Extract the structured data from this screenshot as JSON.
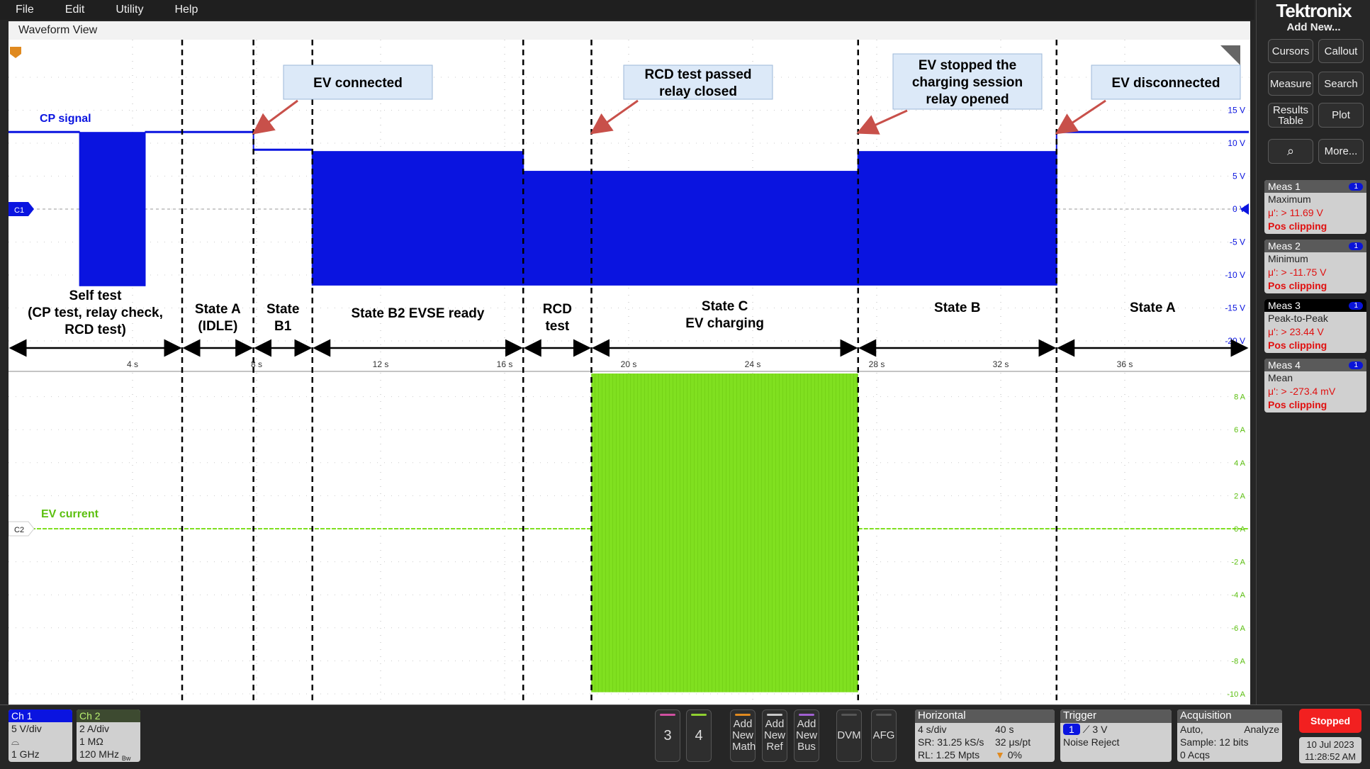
{
  "menu": [
    "File",
    "Edit",
    "Utility",
    "Help"
  ],
  "waveform_view": {
    "title": "Waveform View"
  },
  "brand": {
    "logo": "Tektronix"
  },
  "right_panel": {
    "add_new": "Add New...",
    "buttons": [
      "Cursors",
      "Callout",
      "Measure",
      "Search",
      "Results Table",
      "Plot",
      "zoom-search",
      "More..."
    ],
    "measurements": [
      {
        "title": "Meas 1",
        "badge": "1",
        "type": "Maximum",
        "value": "μ': > 11.69 V",
        "status": "Pos clipping"
      },
      {
        "title": "Meas 2",
        "badge": "1",
        "type": "Minimum",
        "value": "μ': > -11.75 V",
        "status": "Pos clipping"
      },
      {
        "title": "Meas 3",
        "badge": "1",
        "type": "Peak-to-Peak",
        "value": "μ': > 23.44 V",
        "status": "Pos clipping"
      },
      {
        "title": "Meas 4",
        "badge": "1",
        "type": "Mean",
        "value": "μ': > -273.4 mV",
        "status": "Pos clipping"
      }
    ]
  },
  "bottom": {
    "ch1": {
      "title": "Ch 1",
      "scale": "5 V/div",
      "probe_icon": "probe-icon",
      "bw": "1 GHz",
      "bw_mark": "Bw"
    },
    "ch2": {
      "title": "Ch 2",
      "scale": "2 A/div",
      "impedance": "1 MΩ",
      "bw": "120 MHz",
      "bw_mark": "Bw"
    },
    "ch3": "3",
    "ch4": "4",
    "add_math": "Add New Math",
    "add_ref": "Add New Ref",
    "add_bus": "Add New Bus",
    "dvm": "DVM",
    "afg": "AFG",
    "horizontal": {
      "title": "Horizontal",
      "scale": "4 s/div",
      "duration": "40 s",
      "sr": "SR: 31.25 kS/s",
      "pt": "32 μs/pt",
      "rl": "RL: 1.25 Mpts",
      "pos": "0%"
    },
    "trigger": {
      "title": "Trigger",
      "source": "1",
      "level": "3 V",
      "mode": "Noise Reject"
    },
    "acquisition": {
      "title": "Acquisition",
      "mode": "Auto,",
      "analyze": "Analyze",
      "sample": "Sample: 12 bits",
      "acqs": "0 Acqs"
    },
    "status": "Stopped",
    "date": "10 Jul 2023",
    "time": "11:28:52 AM"
  },
  "colors": {
    "ch1": "#0a14e0",
    "ch2": "#80e020",
    "annotation_box": "#dce9f8",
    "arrow": "#c8504a"
  },
  "chart_data": {
    "type": "line",
    "x_unit": "s",
    "xlim": [
      0,
      40
    ],
    "x_ticks": [
      "4 s",
      "8 s",
      "12 s",
      "16 s",
      "20 s",
      "24 s",
      "28 s",
      "32 s",
      "36 s"
    ],
    "grid": true,
    "panes": [
      {
        "channel": "C1",
        "series_name": "CP signal",
        "ylim": [
          -20,
          20
        ],
        "y_ticks": [
          "15 V",
          "10 V",
          "5 V",
          "0 V",
          "-5 V",
          "-10 V",
          "-15 V",
          "-20 V"
        ],
        "segments": [
          {
            "t0": 0,
            "t1": 2.3,
            "max": 11.7,
            "min": 11.7
          },
          {
            "t0": 2.3,
            "t1": 4.4,
            "max": 11.7,
            "min": -11.7
          },
          {
            "t0": 4.4,
            "t1": 7.9,
            "max": 11.7,
            "min": 11.7
          },
          {
            "t0": 7.9,
            "t1": 9.8,
            "max": 9.0,
            "min": 9.0
          },
          {
            "t0": 9.8,
            "t1": 16.6,
            "max": 8.8,
            "min": -11.6
          },
          {
            "t0": 16.6,
            "t1": 18.8,
            "max": 5.8,
            "min": -11.6
          },
          {
            "t0": 18.8,
            "t1": 27.4,
            "max": 5.8,
            "min": -11.6
          },
          {
            "t0": 27.4,
            "t1": 33.8,
            "max": 8.8,
            "min": -11.6
          },
          {
            "t0": 33.8,
            "t1": 40,
            "max": 11.7,
            "min": 11.7
          }
        ]
      },
      {
        "channel": "C2",
        "series_name": "EV current",
        "ylim": [
          -10,
          10
        ],
        "y_ticks": [
          "8 A",
          "6 A",
          "4 A",
          "2 A",
          "0 A",
          "-2 A",
          "-4 A",
          "-6 A",
          "-8 A",
          "-10 A"
        ],
        "segments": [
          {
            "t0": 0,
            "t1": 18.8,
            "max": 0,
            "min": 0
          },
          {
            "t0": 18.8,
            "t1": 27.4,
            "max": 9.4,
            "min": -9.9
          },
          {
            "t0": 27.4,
            "t1": 40,
            "max": 0,
            "min": 0
          }
        ]
      }
    ],
    "state_boundaries_s": [
      5.6,
      7.9,
      9.8,
      16.6,
      18.8,
      27.4,
      33.8
    ],
    "states": [
      {
        "lines": [
          "Self test",
          "(CP test, relay check,",
          "RCD test)"
        ]
      },
      {
        "lines": [
          "State A",
          "(IDLE)"
        ]
      },
      {
        "lines": [
          "State",
          "B1"
        ]
      },
      {
        "lines": [
          "State B2 EVSE ready"
        ]
      },
      {
        "lines": [
          "RCD",
          "test"
        ]
      },
      {
        "lines": [
          "State C",
          "EV charging"
        ]
      },
      {
        "lines": [
          "State B"
        ]
      },
      {
        "lines": [
          "State A"
        ]
      }
    ],
    "annotations": [
      {
        "lines": [
          "EV connected"
        ],
        "at_s": 7.9
      },
      {
        "lines": [
          "RCD test passed",
          "relay closed"
        ],
        "at_s": 18.8
      },
      {
        "lines": [
          "EV stopped the",
          "charging session",
          "relay opened"
        ],
        "at_s": 27.4
      },
      {
        "lines": [
          "EV disconnected"
        ],
        "at_s": 33.8
      }
    ]
  }
}
